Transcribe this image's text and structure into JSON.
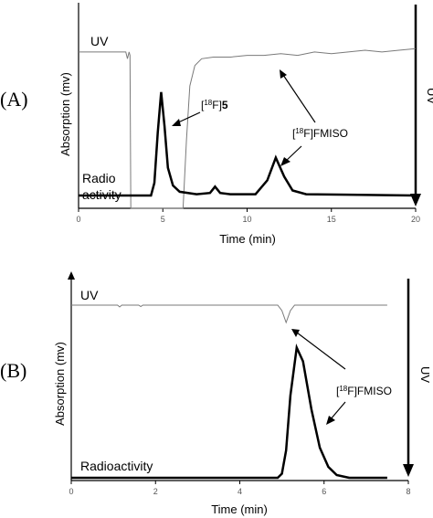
{
  "chart_data": [
    {
      "type": "line",
      "panel_label": "(A)",
      "xlabel": "Time (min)",
      "ylabel": "Absorption (mv)",
      "right_label": "UV",
      "xlim": [
        0,
        20
      ],
      "x_ticks": [
        "0",
        "5",
        "10",
        "15",
        "20"
      ],
      "series": [
        {
          "name": "UV",
          "values": [
            [
              0.0,
              0.92
            ],
            [
              2.6,
              0.92
            ],
            [
              2.8,
              0.92
            ],
            [
              2.9,
              0.88
            ],
            [
              3.0,
              0.92
            ],
            [
              3.05,
              0.9
            ],
            [
              3.1,
              0.0
            ],
            [
              6.2,
              0.0
            ],
            [
              6.4,
              0.4
            ],
            [
              6.6,
              0.72
            ],
            [
              6.9,
              0.84
            ],
            [
              7.3,
              0.88
            ],
            [
              8.0,
              0.89
            ],
            [
              9.0,
              0.89
            ],
            [
              10.0,
              0.9
            ],
            [
              11.0,
              0.9
            ],
            [
              12.0,
              0.91
            ],
            [
              13.0,
              0.9
            ],
            [
              14.0,
              0.92
            ],
            [
              15.0,
              0.91
            ],
            [
              16.0,
              0.92
            ],
            [
              17.0,
              0.93
            ],
            [
              18.0,
              0.92
            ],
            [
              19.0,
              0.93
            ],
            [
              20.0,
              0.94
            ]
          ]
        },
        {
          "name": "Radio activity",
          "values": [
            [
              0.0,
              0.0
            ],
            [
              4.3,
              0.0
            ],
            [
              4.5,
              0.1
            ],
            [
              4.7,
              0.5
            ],
            [
              4.9,
              0.82
            ],
            [
              5.1,
              0.55
            ],
            [
              5.3,
              0.22
            ],
            [
              5.6,
              0.08
            ],
            [
              6.0,
              0.03
            ],
            [
              7.0,
              0.01
            ],
            [
              7.8,
              0.02
            ],
            [
              8.1,
              0.07
            ],
            [
              8.4,
              0.02
            ],
            [
              9.0,
              0.01
            ],
            [
              10.5,
              0.01
            ],
            [
              11.2,
              0.12
            ],
            [
              11.7,
              0.3
            ],
            [
              12.2,
              0.15
            ],
            [
              12.7,
              0.04
            ],
            [
              13.5,
              0.01
            ],
            [
              20.0,
              0.0
            ]
          ]
        }
      ],
      "annotations": [
        {
          "prefix": "[",
          "sup": "18",
          "suffix": "F]",
          "bold": "5",
          "target_x": 4.9
        },
        {
          "prefix": "[",
          "sup": "18",
          "suffix": "F]FMISO",
          "bold": "",
          "target_x": 11.7
        }
      ],
      "trace_labels": {
        "uv": "UV",
        "radio_line1": "Radio",
        "radio_line2": "activity"
      }
    },
    {
      "type": "line",
      "panel_label": "(B)",
      "xlabel": "Time (min)",
      "ylabel": "Absorption (mv)",
      "right_label": "UV",
      "xlim": [
        0,
        8
      ],
      "x_ticks": [
        "0",
        "2",
        "4",
        "6",
        "8"
      ],
      "series": [
        {
          "name": "UV",
          "values": [
            [
              0.0,
              0.0
            ],
            [
              1.1,
              0.0
            ],
            [
              1.15,
              -0.04
            ],
            [
              1.2,
              0.0
            ],
            [
              1.6,
              0.0
            ],
            [
              1.65,
              -0.03
            ],
            [
              1.7,
              0.0
            ],
            [
              4.9,
              0.0
            ],
            [
              5.0,
              -0.12
            ],
            [
              5.1,
              -0.38
            ],
            [
              5.2,
              -0.12
            ],
            [
              5.3,
              0.0
            ],
            [
              7.5,
              0.0
            ]
          ]
        },
        {
          "name": "Radioactivity",
          "values": [
            [
              0.0,
              0.0
            ],
            [
              4.9,
              0.0
            ],
            [
              5.0,
              0.03
            ],
            [
              5.1,
              0.2
            ],
            [
              5.2,
              0.6
            ],
            [
              5.35,
              0.95
            ],
            [
              5.5,
              0.85
            ],
            [
              5.7,
              0.5
            ],
            [
              5.9,
              0.22
            ],
            [
              6.1,
              0.08
            ],
            [
              6.3,
              0.02
            ],
            [
              6.6,
              0.0
            ],
            [
              7.5,
              0.0
            ]
          ]
        }
      ],
      "annotations": [
        {
          "prefix": "[",
          "sup": "18",
          "suffix": "F]FMISO",
          "bold": "",
          "target_x": 5.35
        }
      ],
      "trace_labels": {
        "uv": "UV",
        "radio": "Radioactivity"
      }
    }
  ]
}
